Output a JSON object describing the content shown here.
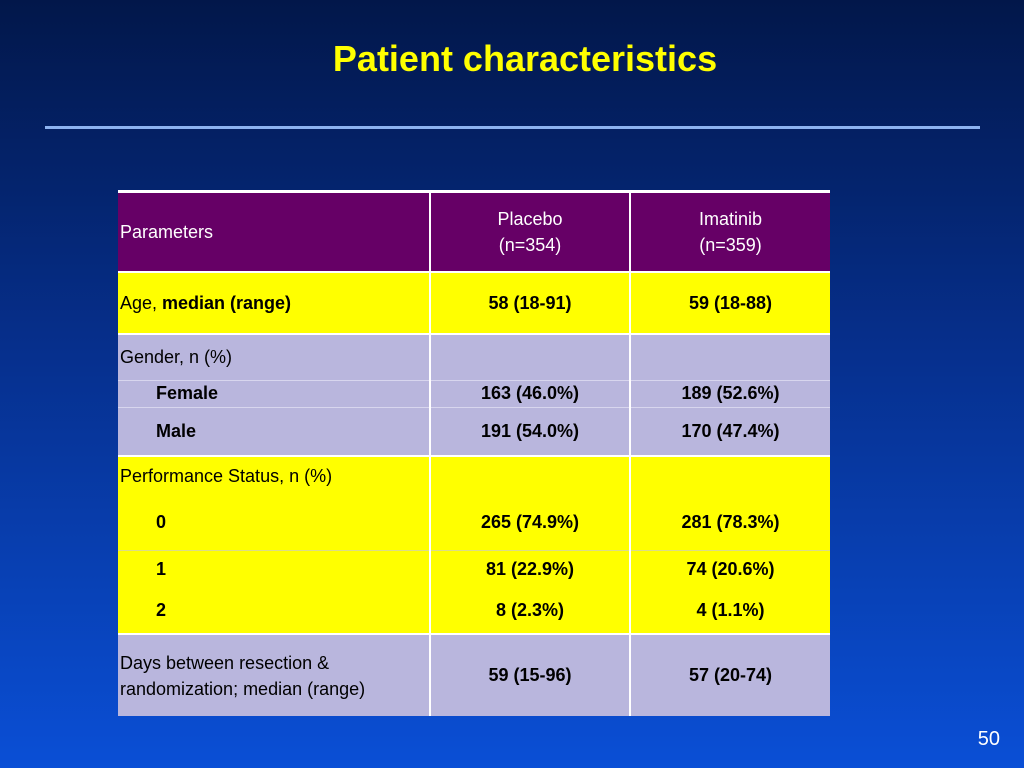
{
  "slide": {
    "title": "Patient characteristics",
    "page_number": "50"
  },
  "table": {
    "header": {
      "parameters": "Parameters",
      "placebo": "Placebo",
      "placebo_n": "(n=354)",
      "imatinib": "Imatinib",
      "imatinib_n": "(n=359)"
    },
    "age": {
      "label_plain": "Age, ",
      "label_bold": "median (range)",
      "placebo": "58 (18-91)",
      "imatinib": "59 (18-88)"
    },
    "gender": {
      "label": "Gender, n (%)",
      "female": {
        "label": "Female",
        "placebo": "163 (46.0%)",
        "imatinib": "189 (52.6%)"
      },
      "male": {
        "label": "Male",
        "placebo": "191 (54.0%)",
        "imatinib": "170 (47.4%)"
      }
    },
    "performance": {
      "label": "Performance Status, n (%)",
      "ps0": {
        "label": "0",
        "placebo": "265 (74.9%)",
        "imatinib": "281 (78.3%)"
      },
      "ps1": {
        "label": "1",
        "placebo": "81 (22.9%)",
        "imatinib": "74 (20.6%)"
      },
      "ps2": {
        "label": "2",
        "placebo": "8 (2.3%)",
        "imatinib": "4 (1.1%)"
      }
    },
    "days": {
      "label_line1": "Days between resection &",
      "label_line2": "randomization; median (range)",
      "placebo": "59 (15-96)",
      "imatinib": "57 (20-74)"
    }
  },
  "colors": {
    "background_top": "#02174a",
    "background_bottom": "#0a4fd6",
    "title": "#ffff00",
    "header_row": "#660066",
    "yellow_rows": "#ffff00",
    "lavender_rows": "#b9b6dd"
  }
}
